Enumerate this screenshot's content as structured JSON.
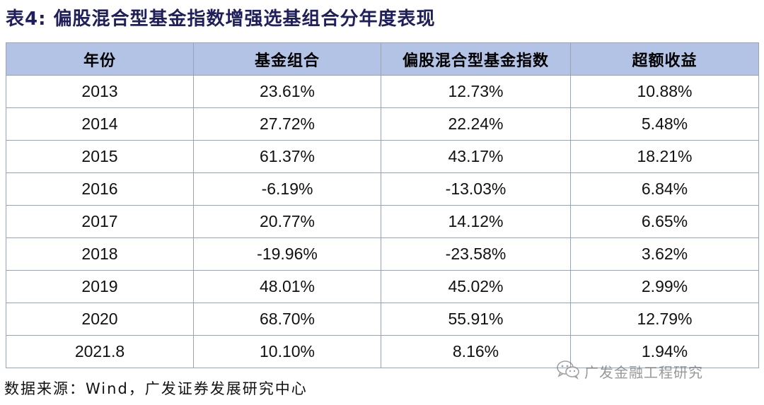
{
  "title": "表4:  偏股混合型基金指数增强选基组合分年度表现",
  "table": {
    "headers": [
      "年份",
      "基金组合",
      "偏股混合型基金指数",
      "超额收益"
    ],
    "rows": [
      [
        "2013",
        "23.61%",
        "12.73%",
        "10.88%"
      ],
      [
        "2014",
        "27.72%",
        "22.24%",
        "5.48%"
      ],
      [
        "2015",
        "61.37%",
        "43.17%",
        "18.21%"
      ],
      [
        "2016",
        "-6.19%",
        "-13.03%",
        "6.84%"
      ],
      [
        "2017",
        "20.77%",
        "14.12%",
        "6.65%"
      ],
      [
        "2018",
        "-19.96%",
        "-23.58%",
        "3.62%"
      ],
      [
        "2019",
        "48.01%",
        "45.02%",
        "2.99%"
      ],
      [
        "2020",
        "68.70%",
        "55.91%",
        "12.79%"
      ],
      [
        "2021.8",
        "10.10%",
        "8.16%",
        "1.94%"
      ]
    ]
  },
  "source": "数据来源：Wind，广发证券发展研究中心",
  "watermark": {
    "icon": "wechat-icon",
    "text": "广发金融工程研究"
  },
  "colors": {
    "header_background": "#b3c3e6",
    "title_color": "#1f1f5c",
    "border": "#9aa3b3"
  }
}
